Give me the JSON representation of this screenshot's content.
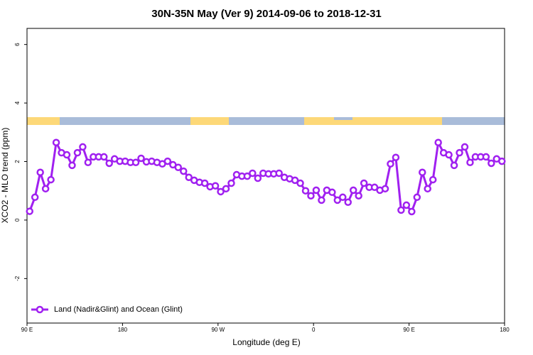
{
  "chart_data": {
    "type": "line",
    "title": "30N-35N May (Ver 9)   2014-09-06 to 2018-12-31",
    "x_label": "Longitude (deg E)",
    "y_label": "XCO2 - MLO trend (ppm)",
    "xlim": [
      90,
      540
    ],
    "ylim": [
      -3.52,
      6.55
    ],
    "xticks": [
      {
        "value": 90,
        "label": "90 E"
      },
      180,
      {
        "value": 270,
        "label": "90 W"
      },
      {
        "value": 360,
        "label": "0"
      },
      {
        "value": 450,
        "label": "90 E"
      },
      {
        "value": 540,
        "label": "180"
      }
    ],
    "yticks": [
      -2,
      0,
      2,
      4,
      6
    ],
    "legend": "bottomleft",
    "x": [
      92.5,
      97.5,
      102.5,
      107.5,
      112.5,
      117.5,
      122.5,
      127.5,
      132.5,
      137.5,
      142.5,
      147.5,
      152.5,
      157.5,
      162.5,
      167.5,
      172.5,
      177.5,
      182.5,
      187.5,
      192.5,
      197.5,
      202.5,
      207.5,
      212.5,
      217.5,
      222.5,
      227.5,
      232.5,
      237.5,
      242.5,
      247.5,
      252.5,
      257.5,
      262.5,
      267.5,
      272.5,
      277.5,
      282.5,
      287.5,
      292.5,
      297.5,
      302.5,
      307.5,
      312.5,
      317.5,
      322.5,
      327.5,
      332.5,
      337.5,
      342.5,
      347.5,
      352.5,
      357.5,
      362.5,
      367.5,
      372.5,
      377.5,
      382.5,
      387.5,
      392.5,
      397.5,
      402.5,
      407.5,
      412.5,
      417.5,
      422.5,
      427.5,
      432.5,
      437.5,
      442.5,
      447.5,
      452.5,
      457.5,
      462.5,
      467.5,
      472.5,
      477.5,
      482.5,
      487.5,
      492.5,
      497.5,
      502.5,
      507.5,
      512.5,
      517.5,
      522.5,
      527.5,
      532.5,
      537.5
    ],
    "series": [
      {
        "name": "Land (Nadir&Glint) and Ocean (Glint)",
        "color": "#a020f0",
        "values": [
          0.3,
          0.78,
          1.63,
          1.07,
          1.38,
          2.65,
          2.3,
          2.23,
          1.87,
          2.3,
          2.5,
          1.97,
          2.16,
          2.16,
          2.16,
          1.94,
          2.09,
          2.01,
          2.01,
          1.97,
          1.97,
          2.11,
          1.99,
          2.01,
          1.97,
          1.92,
          2.01,
          1.89,
          1.8,
          1.67,
          1.46,
          1.36,
          1.29,
          1.26,
          1.14,
          1.17,
          0.97,
          1.07,
          1.26,
          1.55,
          1.5,
          1.5,
          1.6,
          1.43,
          1.6,
          1.58,
          1.58,
          1.6,
          1.46,
          1.41,
          1.36,
          1.26,
          1.0,
          0.83,
          1.02,
          0.68,
          1.02,
          0.95,
          0.68,
          0.78,
          0.61,
          1.02,
          0.83,
          1.26,
          1.12,
          1.12,
          1.02,
          1.07,
          1.92,
          2.14,
          0.34,
          0.51,
          0.29,
          0.78,
          1.63,
          1.07,
          1.38,
          2.65,
          2.3,
          2.23,
          1.87,
          2.3,
          2.5,
          1.97,
          2.16,
          2.16,
          2.16,
          1.94,
          2.09,
          2.01
        ]
      }
    ]
  }
}
